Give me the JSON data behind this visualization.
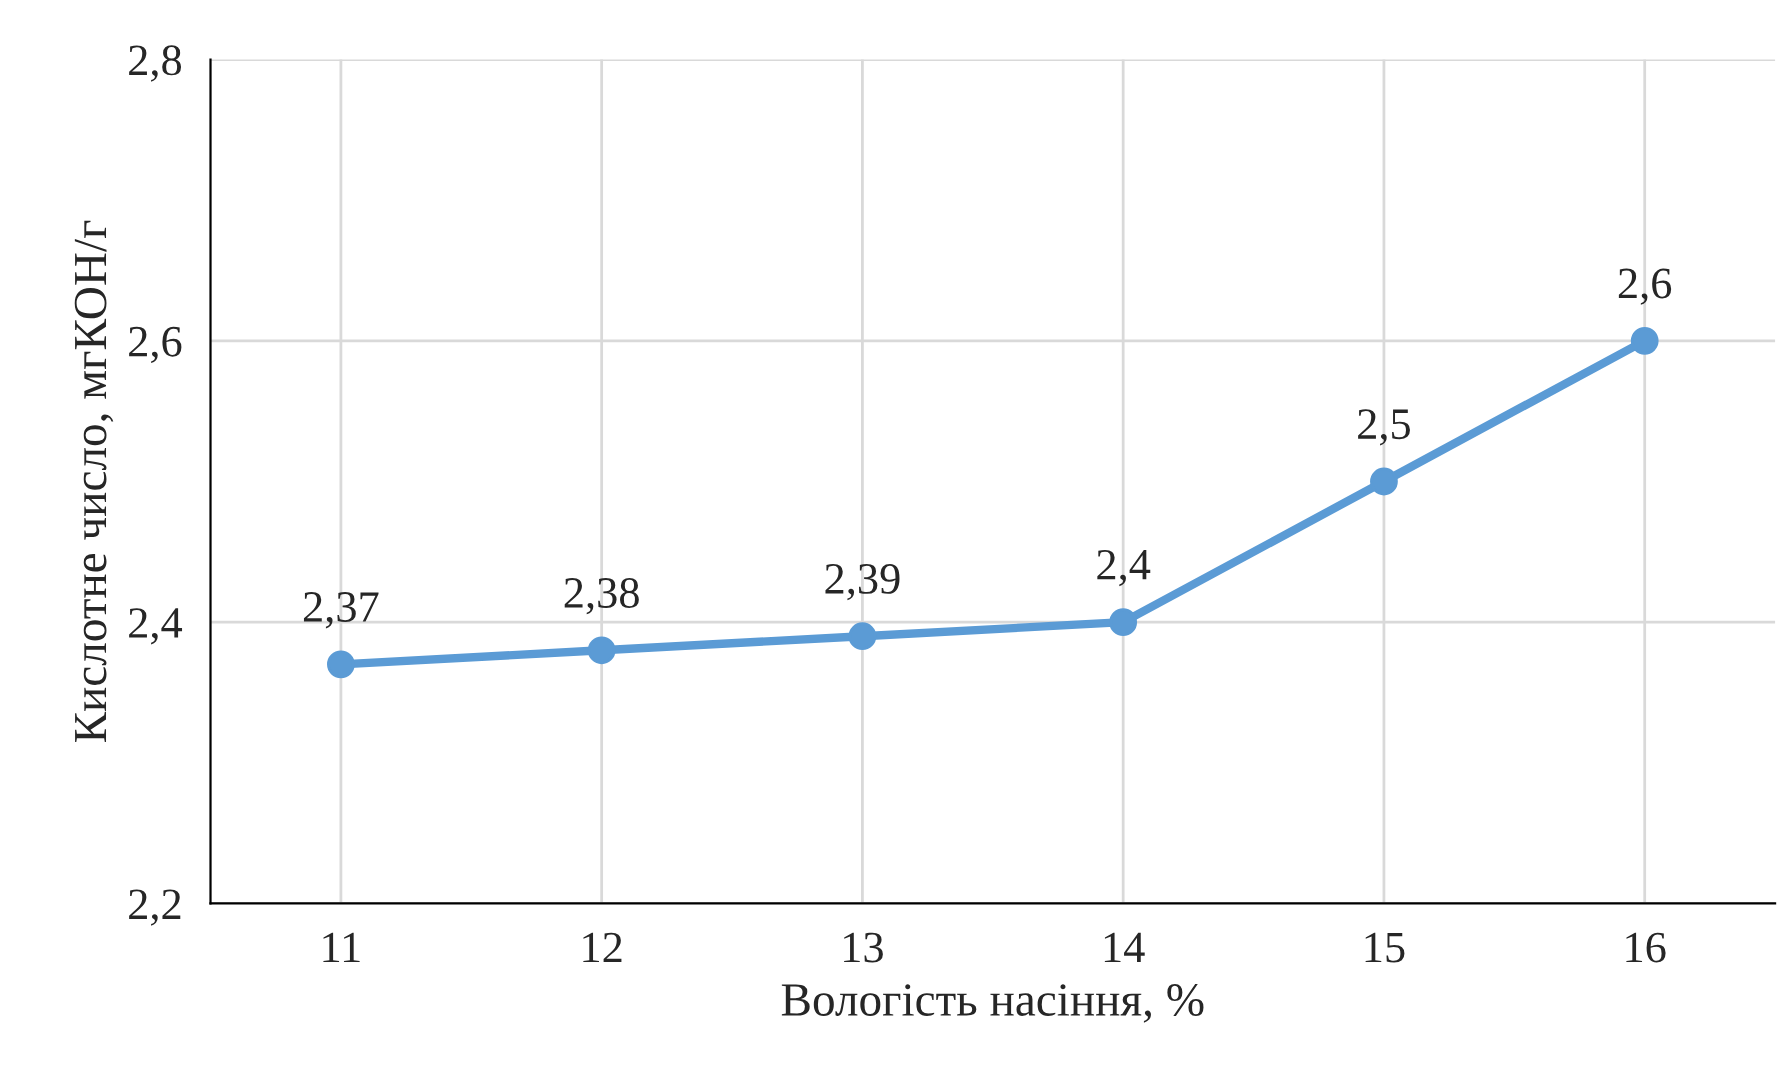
{
  "chart_data": {
    "type": "line",
    "xlabel": "Вологість насіння, %",
    "ylabel": "Кислотне число, мгКОН/г",
    "x": [
      11,
      12,
      13,
      14,
      15,
      16
    ],
    "series": [
      {
        "color": "#5b9bd5",
        "values": [
          2.37,
          2.38,
          2.39,
          2.4,
          2.5,
          2.6
        ],
        "value_labels": [
          "2,37",
          "2,38",
          "2,39",
          "2,4",
          "2,5",
          "2,6"
        ]
      }
    ],
    "xlim": [
      10.5,
      16.5
    ],
    "xticks": [
      11,
      12,
      13,
      14,
      15,
      16
    ],
    "ylim": [
      2.2,
      2.8
    ],
    "yticks": [
      {
        "value": 2.2,
        "label": "2,2"
      },
      {
        "value": 2.4,
        "label": "2,4"
      },
      {
        "value": 2.6,
        "label": "2,6"
      },
      {
        "value": 2.8,
        "label": "2,8"
      }
    ],
    "grid": true,
    "marker": "circle",
    "line_style": "solid"
  }
}
